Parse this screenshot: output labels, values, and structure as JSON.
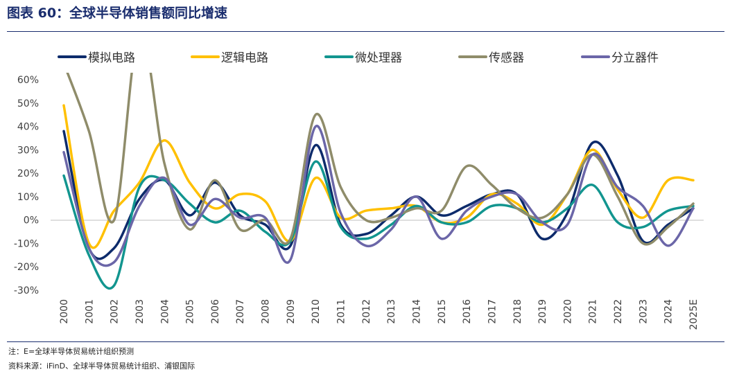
{
  "header": {
    "title": "图表 60：全球半导体销售额同比增速"
  },
  "footer": {
    "note": "注：E=全球半导体贸易统计组织预测",
    "source": "资料来源：iFinD、全球半导体贸易统计组织、浦银国际"
  },
  "chart_data": {
    "type": "line",
    "x": [
      "2000",
      "2001",
      "2002",
      "2003",
      "2004",
      "2005",
      "2006",
      "2007",
      "2008",
      "2009",
      "2010",
      "2011",
      "2012",
      "2013",
      "2014",
      "2015",
      "2016",
      "2017",
      "2018",
      "2019",
      "2020",
      "2021",
      "2022",
      "2023",
      "2024",
      "2025E"
    ],
    "yticks": [
      "60%",
      "50%",
      "40%",
      "30%",
      "20%",
      "10%",
      "0%",
      "-10%",
      "-20%",
      "-30%"
    ],
    "ylim": [
      -30,
      60
    ],
    "ylabel": "",
    "xlabel": "",
    "legend_position": "top",
    "series": [
      {
        "name": "模拟电路",
        "color": "#0d2b6b",
        "values": [
          38,
          -12,
          -12,
          9,
          17,
          2,
          16,
          2,
          -2,
          -11,
          32,
          -2,
          -6,
          2,
          10,
          2,
          6,
          11,
          11,
          -8,
          3,
          33,
          19,
          -9,
          -2,
          5
        ]
      },
      {
        "name": "逻辑电路",
        "color": "#ffc000",
        "values": [
          49,
          -10,
          4,
          16,
          34,
          16,
          5,
          11,
          8,
          -9,
          18,
          1,
          4,
          5,
          6,
          -1,
          1,
          11,
          7,
          -2,
          11,
          30,
          13,
          1,
          17,
          17
        ]
      },
      {
        "name": "微处理器",
        "color": "#12958f",
        "values": [
          19,
          -15,
          -28,
          14,
          17,
          7,
          -1,
          4,
          -5,
          -9,
          25,
          -3,
          -8,
          -2,
          6,
          -1,
          -1,
          6,
          5,
          -1,
          5,
          15,
          -1,
          -3,
          4,
          6
        ]
      },
      {
        "name": "传感器",
        "color": "#8f8c6a",
        "values": [
          67,
          38,
          0,
          81,
          24,
          -4,
          17,
          -4,
          0,
          -8,
          45,
          14,
          0,
          1,
          5,
          4,
          23,
          15,
          5,
          1,
          11,
          28,
          10,
          -10,
          -3,
          7
        ]
      },
      {
        "name": "分立器件",
        "color": "#6b66a8",
        "values": [
          29,
          -12,
          -18,
          6,
          18,
          -2,
          9,
          1,
          1,
          -17,
          40,
          3,
          -11,
          -4,
          10,
          -8,
          4,
          10,
          11,
          -1,
          -2,
          28,
          14,
          6,
          -11,
          5
        ]
      }
    ]
  }
}
